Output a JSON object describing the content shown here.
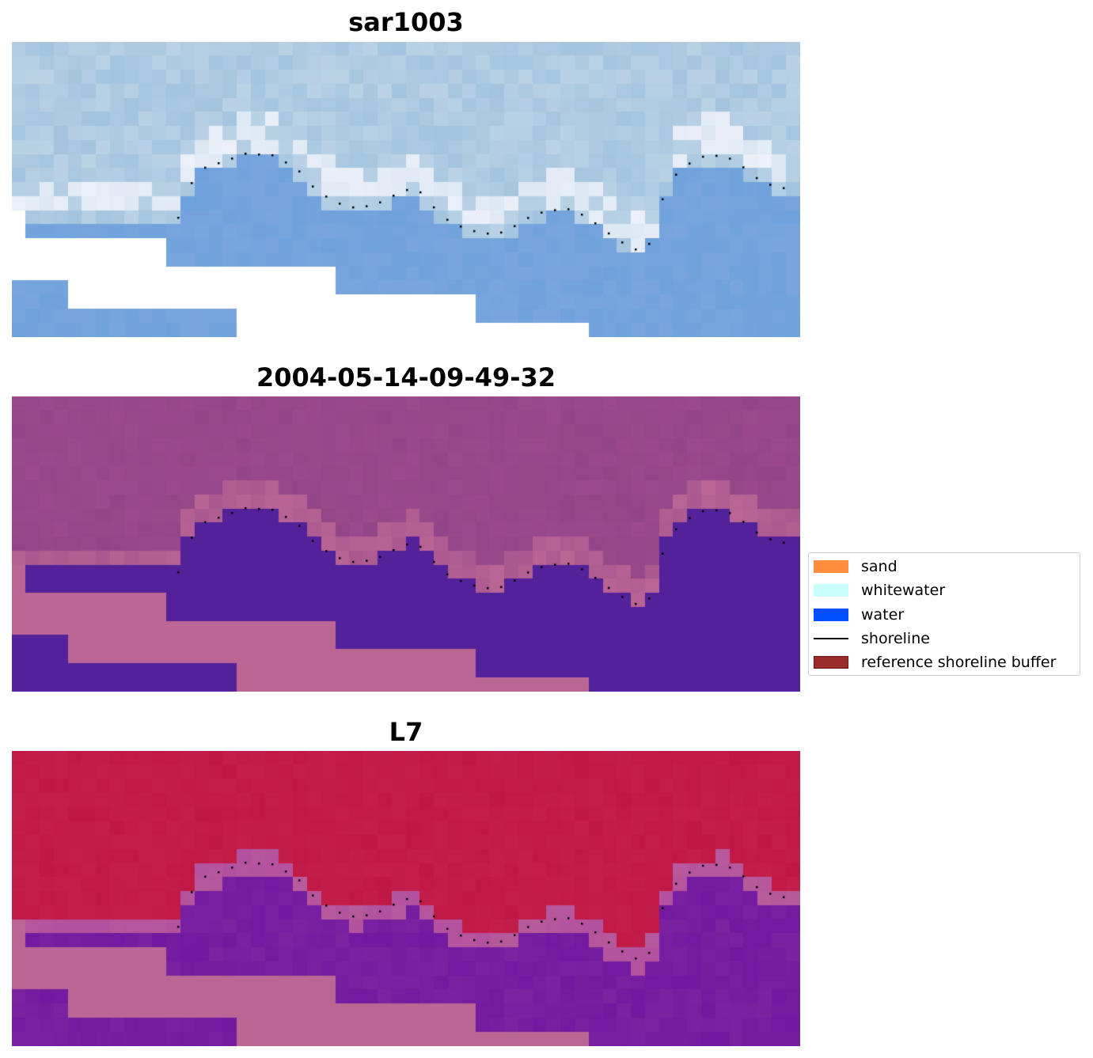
{
  "panels": [
    {
      "title": "sar1003",
      "palette": "sar"
    },
    {
      "title": "2004-05-14-09-49-32",
      "palette": "classified"
    },
    {
      "title": "L7",
      "palette": "index"
    }
  ],
  "legend": {
    "items": [
      {
        "label": "sand",
        "color": "#ff8c3a",
        "kind": "patch"
      },
      {
        "label": "whitewater",
        "color": "#c8fffb",
        "kind": "patch"
      },
      {
        "label": "water",
        "color": "#0050ff",
        "kind": "patch"
      },
      {
        "label": "shoreline",
        "color": "#000000",
        "kind": "line"
      },
      {
        "label": "reference shoreline buffer",
        "color": "#9b2c2c",
        "kind": "patch"
      }
    ]
  },
  "colors": {
    "sar_sky": "#b9d2e6",
    "sar_water": "#6fa2dc",
    "sar_white": "#f2f4fa",
    "cls_upper": "#9a4a8c",
    "cls_water": "#53219a",
    "cls_pink": "#bb6695",
    "idx_red": "#c01845",
    "idx_purple": "#7a22a0",
    "idx_pink": "#bb6695"
  }
}
